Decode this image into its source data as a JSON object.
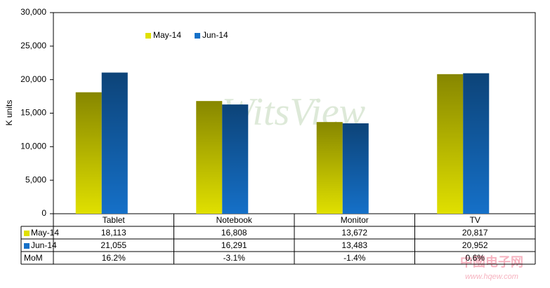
{
  "chart_data": {
    "type": "bar",
    "y_label": "K units",
    "categories": [
      "Tablet",
      "Notebook",
      "Monitor",
      "TV"
    ],
    "series": [
      {
        "name": "May-14",
        "color": "#e0e000",
        "values": [
          18113,
          16808,
          13672,
          20817
        ],
        "value_labels": [
          "18,113",
          "16,808",
          "13,672",
          "20,817"
        ]
      },
      {
        "name": "Jun-14",
        "color": "#1570c8",
        "values": [
          21055,
          16291,
          13483,
          20952
        ],
        "value_labels": [
          "21,055",
          "16,291",
          "13,483",
          "20,952"
        ]
      }
    ],
    "change": {
      "name": "MoM",
      "values": [
        16.2,
        -3.1,
        -1.4,
        0.6
      ],
      "value_labels": [
        "16.2%",
        "-3.1%",
        "-1.4%",
        "0.6%"
      ]
    },
    "ylim": [
      0,
      30000
    ],
    "yticks": [
      0,
      {
        "value": 5000,
        "label": "5,000"
      },
      {
        "value": 10000,
        "label": "10,000"
      },
      {
        "value": 15000,
        "label": "15,000"
      },
      {
        "value": 20000,
        "label": "20,000"
      },
      {
        "value": 25000,
        "label": "25,000"
      },
      {
        "value": 30000,
        "label": "30,000"
      }
    ],
    "grid": false,
    "watermarks": [
      "WitsView",
      "中國电子网",
      "www.hqew.com"
    ]
  }
}
